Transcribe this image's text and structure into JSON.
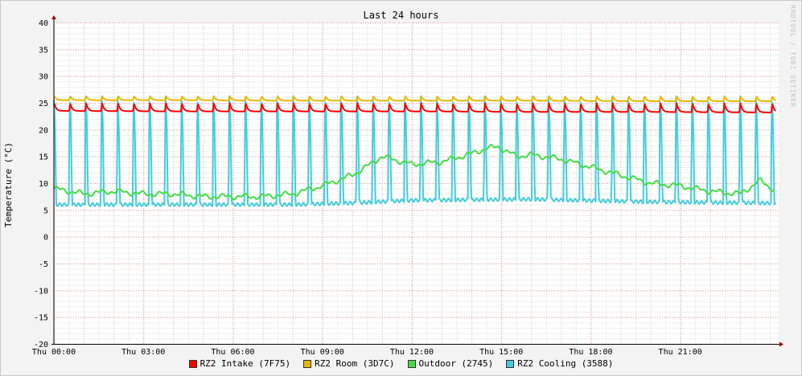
{
  "chart_data": {
    "type": "line",
    "title": "Last 24 hours",
    "ylabel": "Temperature (°C)",
    "xlabel": "",
    "watermark": "RRDTOOL / TOBI OETIKER",
    "ylim": [
      -20,
      40
    ],
    "y_ticks": [
      40,
      35,
      30,
      25,
      20,
      15,
      10,
      5,
      0,
      -5,
      -10,
      -15,
      -20
    ],
    "x_range_hours": [
      0,
      24.3
    ],
    "x_ticks": [
      {
        "hour": 0,
        "label": "Thu 00:00"
      },
      {
        "hour": 3,
        "label": "Thu 03:00"
      },
      {
        "hour": 6,
        "label": "Thu 06:00"
      },
      {
        "hour": 9,
        "label": "Thu 09:00"
      },
      {
        "hour": 12,
        "label": "Thu 12:00"
      },
      {
        "hour": 15,
        "label": "Thu 15:00"
      },
      {
        "hour": 18,
        "label": "Thu 18:00"
      },
      {
        "hour": 21,
        "label": "Thu 21:00"
      }
    ],
    "grid": true,
    "legend_position": "bottom",
    "series": [
      {
        "name": "RZ2 Intake (7F75)",
        "color": "#ff0000",
        "pattern": "sawtooth",
        "period_hours": 0.535,
        "peak": 25.0,
        "base": 23.2,
        "x": [
          0,
          4,
          8,
          12,
          16,
          20,
          24
        ],
        "y": [
          23.5,
          23.4,
          23.4,
          23.4,
          23.3,
          23.3,
          23.2
        ]
      },
      {
        "name": "RZ2 Room (3D7C)",
        "color": "#e6b800",
        "pattern": "sawtooth",
        "period_hours": 0.535,
        "peak": 26.3,
        "base": 25.3,
        "x": [
          0,
          4,
          8,
          12,
          16,
          20,
          24
        ],
        "y": [
          25.5,
          25.5,
          25.4,
          25.4,
          25.4,
          25.3,
          25.3
        ]
      },
      {
        "name": "Outdoor (2745)",
        "color": "#44dd44",
        "pattern": "smooth",
        "x": [
          0,
          1,
          2,
          3,
          4,
          5,
          6,
          7,
          8,
          9,
          10,
          10.6,
          11,
          12,
          13,
          14,
          14.5,
          14.9,
          15.5,
          16,
          17,
          18,
          19,
          20,
          21,
          22,
          23,
          23.7,
          24.2
        ],
        "y": [
          9.0,
          8.0,
          8.5,
          8.0,
          8.0,
          7.5,
          7.5,
          7.5,
          8.0,
          9.5,
          11.5,
          13.5,
          15.0,
          13.5,
          14.0,
          15.5,
          16.5,
          16.8,
          15.0,
          15.3,
          14.5,
          13.0,
          11.5,
          10.0,
          9.5,
          8.5,
          8.0,
          10.5,
          8.5
        ]
      },
      {
        "name": "RZ2 Cooling (3588)",
        "color": "#44ccdd",
        "pattern": "spikes",
        "period_hours": 0.535,
        "peak": 26.5,
        "x": [
          0,
          4,
          8,
          10,
          12,
          16,
          20,
          24
        ],
        "y": [
          6.0,
          6.0,
          6.0,
          6.3,
          6.8,
          7.0,
          6.5,
          6.3
        ]
      }
    ]
  }
}
